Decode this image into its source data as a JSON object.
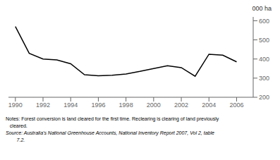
{
  "chart_data": {
    "type": "line",
    "x": [
      1990,
      1991,
      1992,
      1993,
      1994,
      1995,
      1996,
      1997,
      1998,
      1999,
      2000,
      2001,
      2002,
      2003,
      2004,
      2005,
      2006
    ],
    "values": [
      570,
      430,
      400,
      395,
      375,
      318,
      312,
      315,
      322,
      335,
      350,
      365,
      355,
      310,
      425,
      420,
      385
    ],
    "color": "#000000",
    "xlim": [
      1989.5,
      2007.2
    ],
    "ylim": [
      200,
      620
    ],
    "xticks": [
      1990,
      1992,
      1994,
      1996,
      1998,
      2000,
      2002,
      2004,
      2006
    ],
    "yticks": [
      200,
      300,
      400,
      500,
      600
    ],
    "y_label": "000 ha",
    "grid": false,
    "annotations": [
      "Notes: Forest conversion is land cleared for the first time. Reclearing is clearing of land previously",
      "   cleared.",
      "Source: Australia's National Greenhouse Accounts, National Inventory Report 2007, Vol 2, table",
      "        7.2."
    ]
  }
}
